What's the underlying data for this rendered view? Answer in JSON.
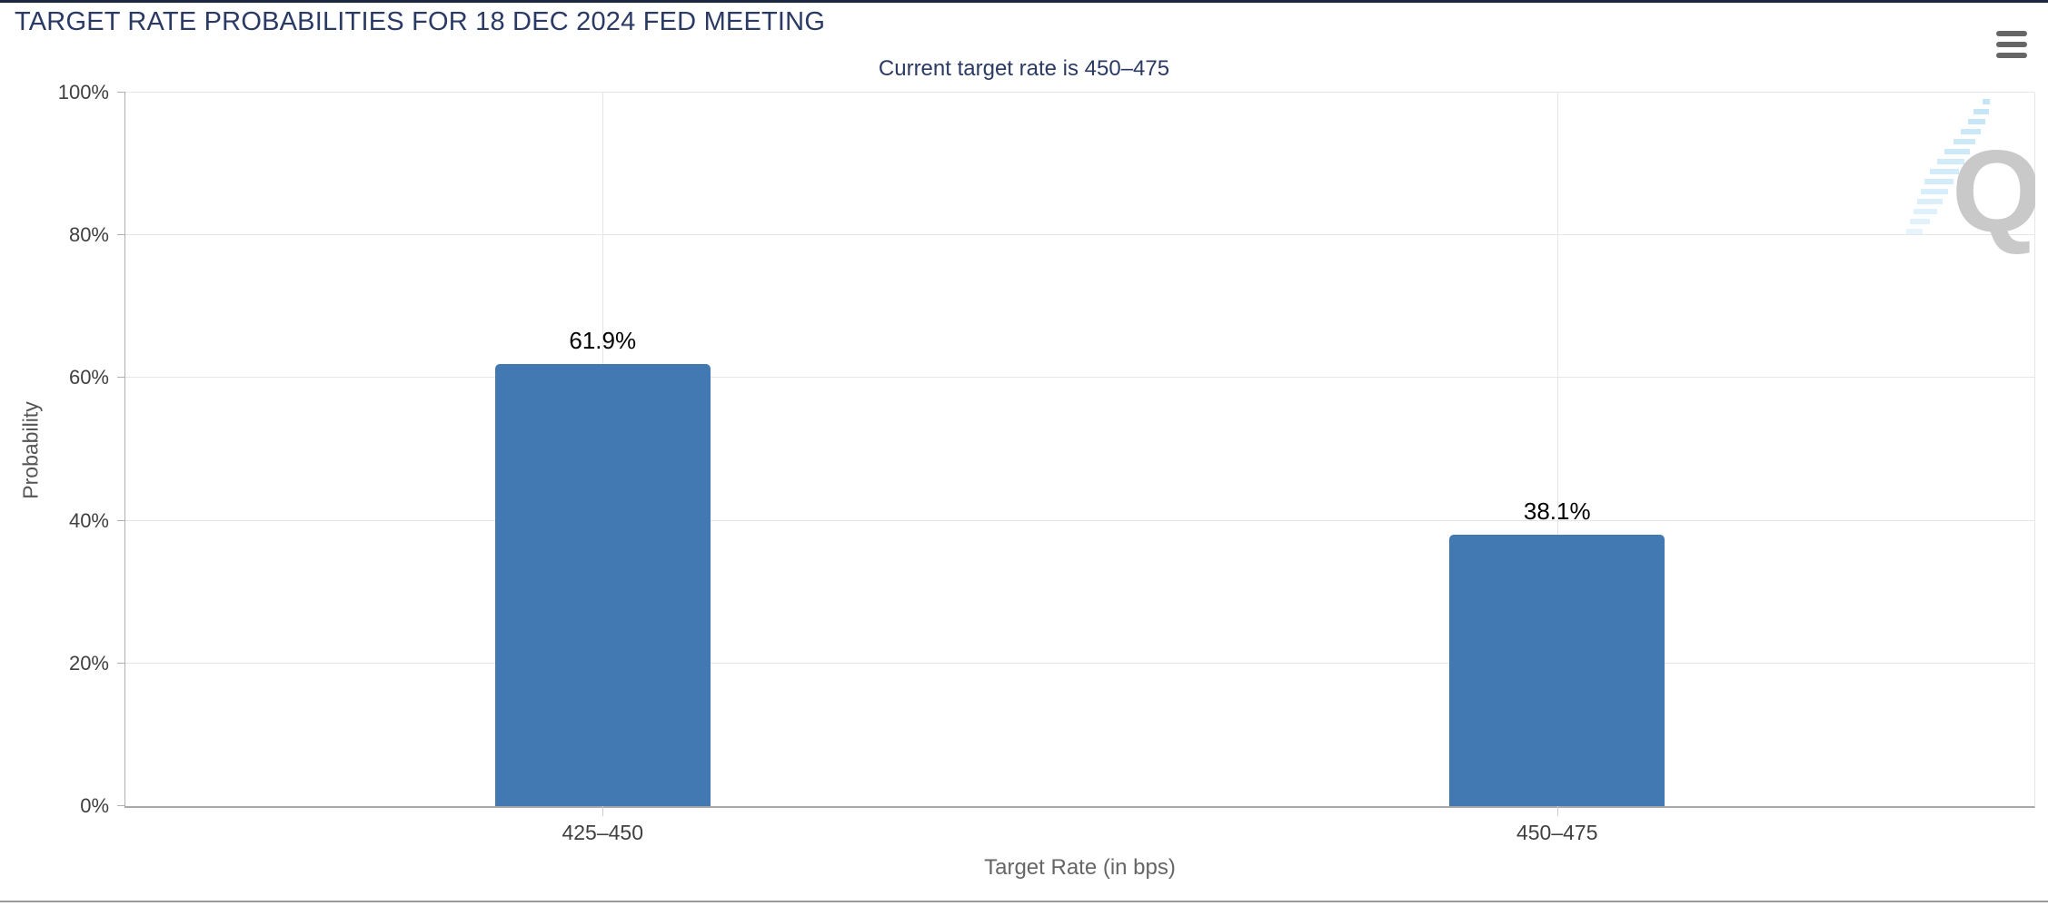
{
  "chart_data": {
    "type": "bar",
    "title": "TARGET RATE PROBABILITIES FOR 18 DEC 2024 FED MEETING",
    "subtitle": "Current target rate is 450–475",
    "categories": [
      "425–450",
      "450–475"
    ],
    "values": [
      61.9,
      38.1
    ],
    "value_labels": [
      "61.9%",
      "38.1%"
    ],
    "xlabel": "Target Rate (in bps)",
    "ylabel": "Probability",
    "ylim": [
      0,
      100
    ],
    "yticks": [
      0,
      20,
      40,
      60,
      80,
      100
    ],
    "ytick_labels": [
      "0%",
      "20%",
      "40%",
      "60%",
      "80%",
      "100%"
    ],
    "grid": true,
    "legend_position": "none",
    "bar_color": "#4379b2"
  },
  "watermark": {
    "letter": "Q"
  },
  "colors": {
    "title_navy": "#2a3a64",
    "bar_blue": "#4379b2",
    "grid_gray": "#e6e6e6",
    "axis_gray": "#b0b0b0",
    "top_border_navy": "#1c2740",
    "menu_icon_gray": "#666666",
    "watermark_gray": "#c9c9c9",
    "watermark_blue": "#b9e1f6"
  }
}
